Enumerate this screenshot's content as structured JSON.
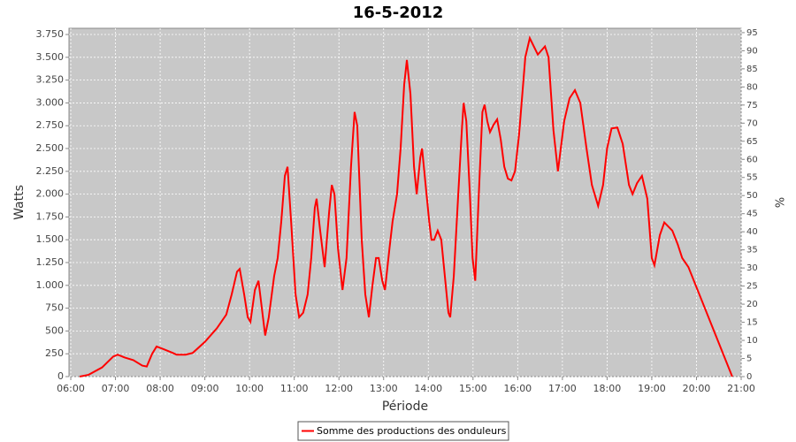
{
  "chart_data": {
    "type": "line",
    "title": "16-5-2012",
    "x_label": "Période",
    "y_label": "Watts",
    "y2_label": "%",
    "xlim": [
      5.96,
      21
    ],
    "xticks": [
      {
        "value": 6,
        "label": "06:00"
      },
      {
        "value": 7,
        "label": "07:00"
      },
      {
        "value": 8,
        "label": "08:00"
      },
      {
        "value": 9,
        "label": "09:00"
      },
      {
        "value": 10,
        "label": "10:00"
      },
      {
        "value": 11,
        "label": "11:00"
      },
      {
        "value": 12,
        "label": "12:00"
      },
      {
        "value": 13,
        "label": "13:00"
      },
      {
        "value": 14,
        "label": "14:00"
      },
      {
        "value": 15,
        "label": "15:00"
      },
      {
        "value": 16,
        "label": "16:00"
      },
      {
        "value": 17,
        "label": "17:00"
      },
      {
        "value": 18,
        "label": "18:00"
      },
      {
        "value": 19,
        "label": "19:00"
      },
      {
        "value": 20,
        "label": "20:00"
      },
      {
        "value": 21,
        "label": "21:00"
      }
    ],
    "ylim": [
      0,
      3818
    ],
    "yticks": [
      0,
      250,
      500,
      750,
      {
        "value": 1000,
        "label": "1.000"
      },
      {
        "value": 1250,
        "label": "1.250"
      },
      {
        "value": 1500,
        "label": "1.500"
      },
      {
        "value": 1750,
        "label": "1.750"
      },
      {
        "value": 2000,
        "label": "2.000"
      },
      {
        "value": 2250,
        "label": "2.250"
      },
      {
        "value": 2500,
        "label": "2.500"
      },
      {
        "value": 2750,
        "label": "2.750"
      },
      {
        "value": 3000,
        "label": "3.000"
      },
      {
        "value": 3250,
        "label": "3.250"
      },
      {
        "value": 3500,
        "label": "3.500"
      },
      {
        "value": 3750,
        "label": "3.750"
      }
    ],
    "y2lim": [
      0,
      96.2
    ],
    "y2ticks": [
      0,
      5,
      10,
      15,
      20,
      25,
      30,
      35,
      40,
      45,
      50,
      55,
      60,
      65,
      70,
      75,
      80,
      85,
      90,
      95
    ],
    "grid": true,
    "legend": "bottom",
    "x": [
      6.2,
      6.4,
      6.7,
      6.95,
      7.05,
      7.2,
      7.4,
      7.6,
      7.7,
      7.82,
      7.92,
      8.08,
      8.28,
      8.37,
      8.57,
      8.73,
      9.0,
      9.27,
      9.48,
      9.6,
      9.72,
      9.78,
      9.88,
      9.96,
      10.02,
      10.12,
      10.2,
      10.35,
      10.43,
      10.55,
      10.63,
      10.71,
      10.79,
      10.85,
      10.93,
      11.03,
      11.11,
      11.2,
      11.3,
      11.38,
      11.46,
      11.5,
      11.58,
      11.68,
      11.78,
      11.84,
      11.9,
      11.98,
      12.08,
      12.17,
      12.27,
      12.35,
      12.41,
      12.51,
      12.59,
      12.67,
      12.75,
      12.83,
      12.89,
      12.97,
      13.03,
      13.13,
      13.2,
      13.3,
      13.38,
      13.46,
      13.52,
      13.6,
      13.68,
      13.74,
      13.82,
      13.86,
      13.94,
      14.02,
      14.07,
      14.13,
      14.21,
      14.29,
      14.37,
      14.45,
      14.49,
      14.57,
      14.67,
      14.75,
      14.79,
      14.85,
      14.93,
      14.99,
      15.05,
      15.13,
      15.21,
      15.26,
      15.32,
      15.38,
      15.46,
      15.54,
      15.62,
      15.7,
      15.78,
      15.86,
      15.94,
      16.03,
      16.17,
      16.27,
      16.45,
      16.61,
      16.69,
      16.8,
      16.9,
      17.04,
      17.16,
      17.28,
      17.4,
      17.54,
      17.66,
      17.8,
      17.91,
      18.0,
      18.1,
      18.23,
      18.35,
      18.49,
      18.57,
      18.67,
      18.78,
      18.9,
      19.0,
      19.06,
      19.18,
      19.28,
      19.46,
      19.58,
      19.68,
      19.82,
      20.8
    ],
    "series": [
      {
        "name": "Somme des productions des onduleurs",
        "color": "#ff0000",
        "values": [
          0,
          20,
          100,
          220,
          240,
          210,
          180,
          120,
          110,
          250,
          330,
          300,
          260,
          240,
          240,
          260,
          380,
          530,
          680,
          900,
          1150,
          1180,
          900,
          650,
          600,
          950,
          1050,
          450,
          650,
          1100,
          1300,
          1700,
          2200,
          2300,
          1700,
          900,
          650,
          700,
          900,
          1300,
          1850,
          1950,
          1600,
          1200,
          1800,
          2100,
          2000,
          1400,
          950,
          1300,
          2300,
          2900,
          2750,
          1500,
          900,
          650,
          1000,
          1300,
          1300,
          1050,
          950,
          1400,
          1700,
          2000,
          2500,
          3200,
          3470,
          3100,
          2300,
          2000,
          2400,
          2500,
          2100,
          1700,
          1500,
          1500,
          1600,
          1500,
          1100,
          700,
          650,
          1100,
          2000,
          2700,
          3000,
          2800,
          2000,
          1300,
          1050,
          2000,
          2900,
          2980,
          2800,
          2680,
          2760,
          2820,
          2600,
          2300,
          2170,
          2150,
          2250,
          2650,
          3500,
          3710,
          3530,
          3620,
          3500,
          2700,
          2250,
          2800,
          3050,
          3140,
          3000,
          2500,
          2100,
          1870,
          2100,
          2500,
          2720,
          2730,
          2550,
          2100,
          2000,
          2120,
          2200,
          1950,
          1300,
          1220,
          1550,
          1690,
          1600,
          1450,
          1300,
          1200,
          0
        ]
      }
    ]
  }
}
